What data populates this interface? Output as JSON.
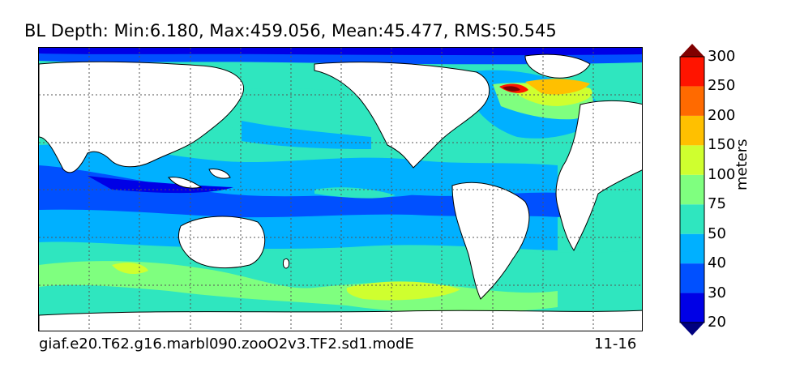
{
  "title": "BL Depth: Min:6.180, Max:459.056, Mean:45.477, RMS:50.545",
  "caption_left": "giaf.e20.T62.g16.marbl090.zooO2v3.TF2.sd1.modE",
  "caption_right": "11-16",
  "colorbar": {
    "label": "meters",
    "ticks": [
      "20",
      "30",
      "40",
      "50",
      "75",
      "100",
      "150",
      "200",
      "250",
      "300"
    ],
    "colors": [
      "#00007f",
      "#0000e6",
      "#0050ff",
      "#00b0ff",
      "#2fe6bf",
      "#7fff7f",
      "#cfff2f",
      "#ffc000",
      "#ff6a00",
      "#ff1400",
      "#800000"
    ],
    "extend": "both"
  },
  "map": {
    "projection": "global",
    "grid": true,
    "land_color": "#ffffff",
    "field_colors": {
      "deep_blue": "#0000e6",
      "blue": "#0050ff",
      "sky": "#00b0ff",
      "cyan": "#2fe6bf",
      "green": "#7fff7f",
      "yellow": "#cfff2f",
      "orange": "#ffc000",
      "red": "#ff1400",
      "maroon": "#800000",
      "navy": "#00007f"
    }
  }
}
